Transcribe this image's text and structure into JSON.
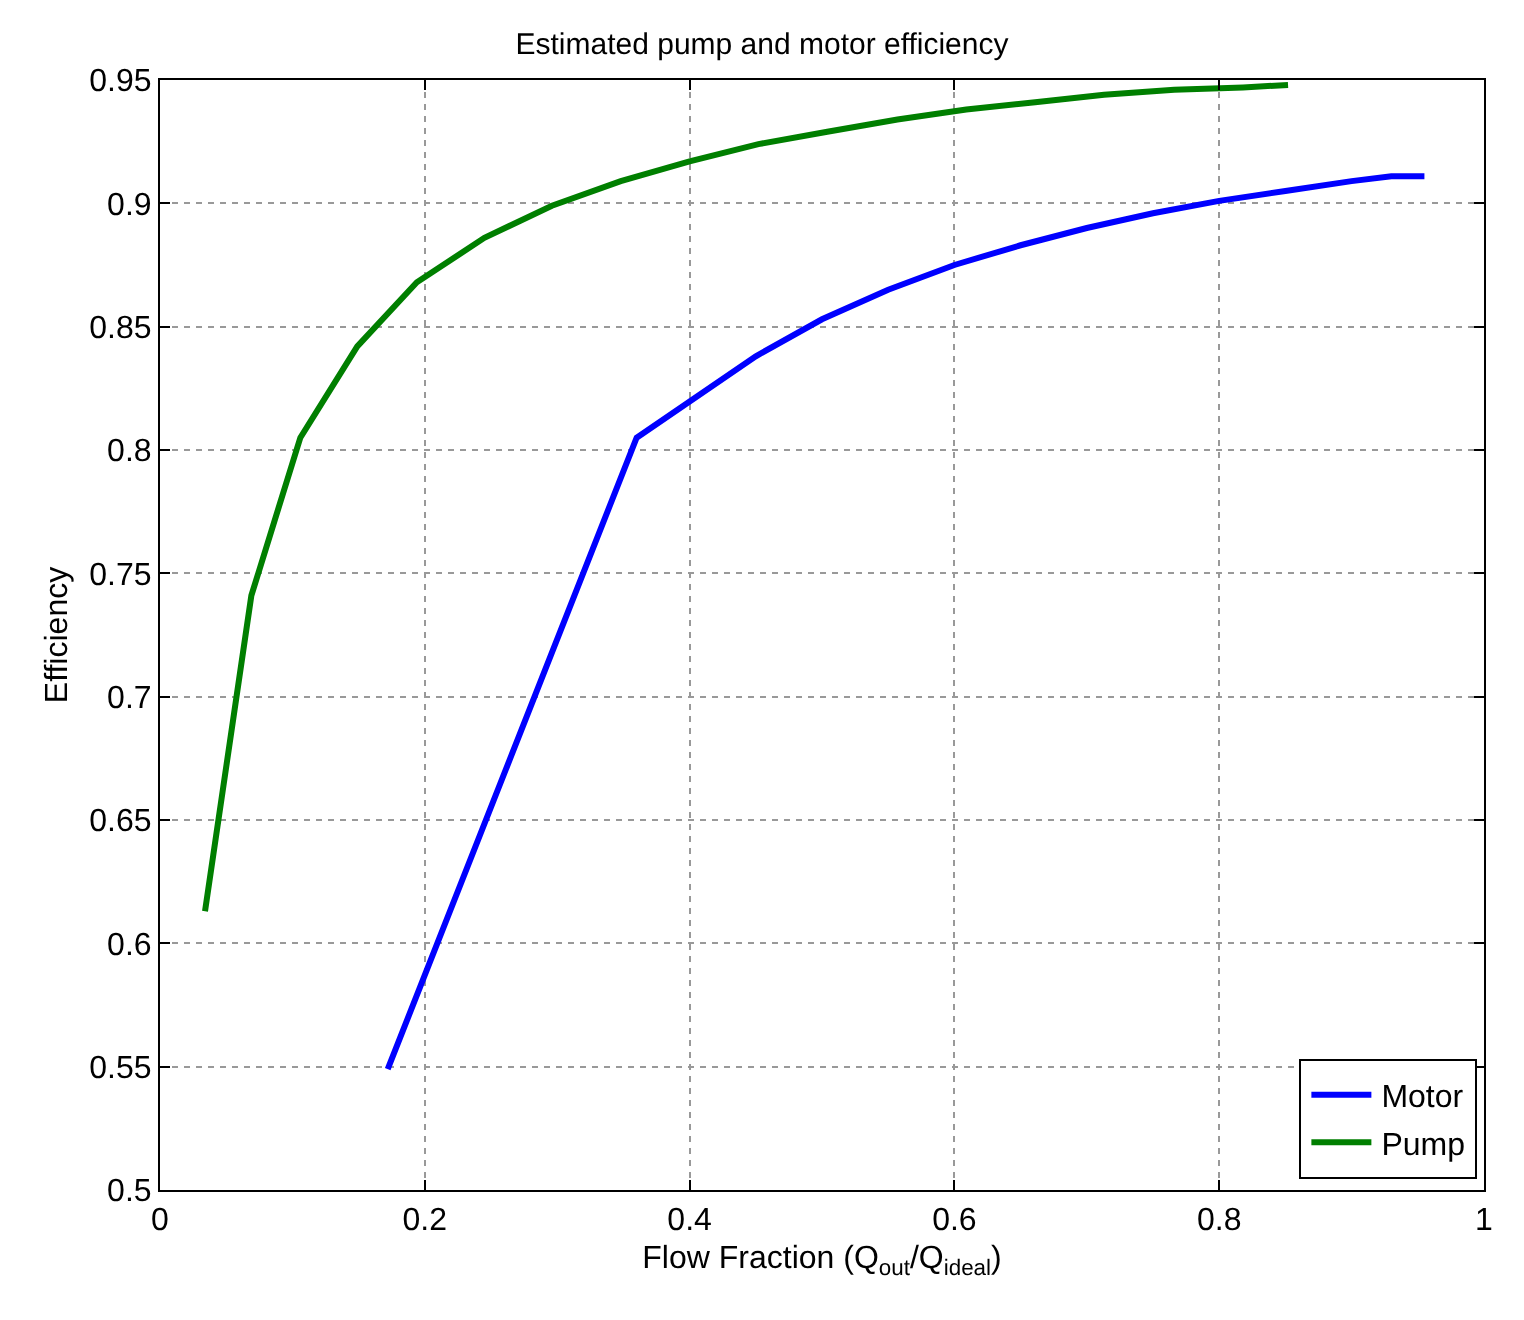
{
  "chart_data": {
    "type": "line",
    "title": "Estimated pump and motor efficiency",
    "xlabel": "Flow Fraction (Q$_{out}$/Q$_{ideal}$)",
    "ylabel": "Efficiency",
    "xlim": [
      0,
      1
    ],
    "xticks": [
      0,
      0.2,
      0.4,
      0.6,
      0.8,
      1
    ],
    "ylim": [
      0.5,
      0.95
    ],
    "yticks": [
      0.5,
      0.55,
      0.6,
      0.65,
      0.7,
      0.75,
      0.8,
      0.85,
      0.9,
      0.95
    ],
    "grid": true,
    "legend": "bottom right",
    "line_style": "solid",
    "marker": "none",
    "series": [
      {
        "name": "Motor",
        "color": "#0000ff",
        "x": [
          0.172,
          0.36,
          0.45,
          0.5,
          0.55,
          0.6,
          0.65,
          0.7,
          0.75,
          0.8,
          0.85,
          0.9,
          0.93,
          0.955
        ],
        "values": [
          0.549,
          0.805,
          0.838,
          0.853,
          0.865,
          0.875,
          0.883,
          0.89,
          0.896,
          0.901,
          0.905,
          0.909,
          0.911,
          0.911
        ]
      },
      {
        "name": "Pump",
        "color": "#007f00",
        "x": [
          0.034,
          0.069,
          0.106,
          0.149,
          0.194,
          0.245,
          0.296,
          0.348,
          0.4,
          0.452,
          0.504,
          0.557,
          0.609,
          0.661,
          0.713,
          0.766,
          0.818,
          0.852
        ],
        "values": [
          0.613,
          0.741,
          0.805,
          0.842,
          0.868,
          0.886,
          0.899,
          0.909,
          0.917,
          0.924,
          0.929,
          0.934,
          0.938,
          0.941,
          0.944,
          0.946,
          0.947,
          0.948
        ]
      }
    ]
  }
}
